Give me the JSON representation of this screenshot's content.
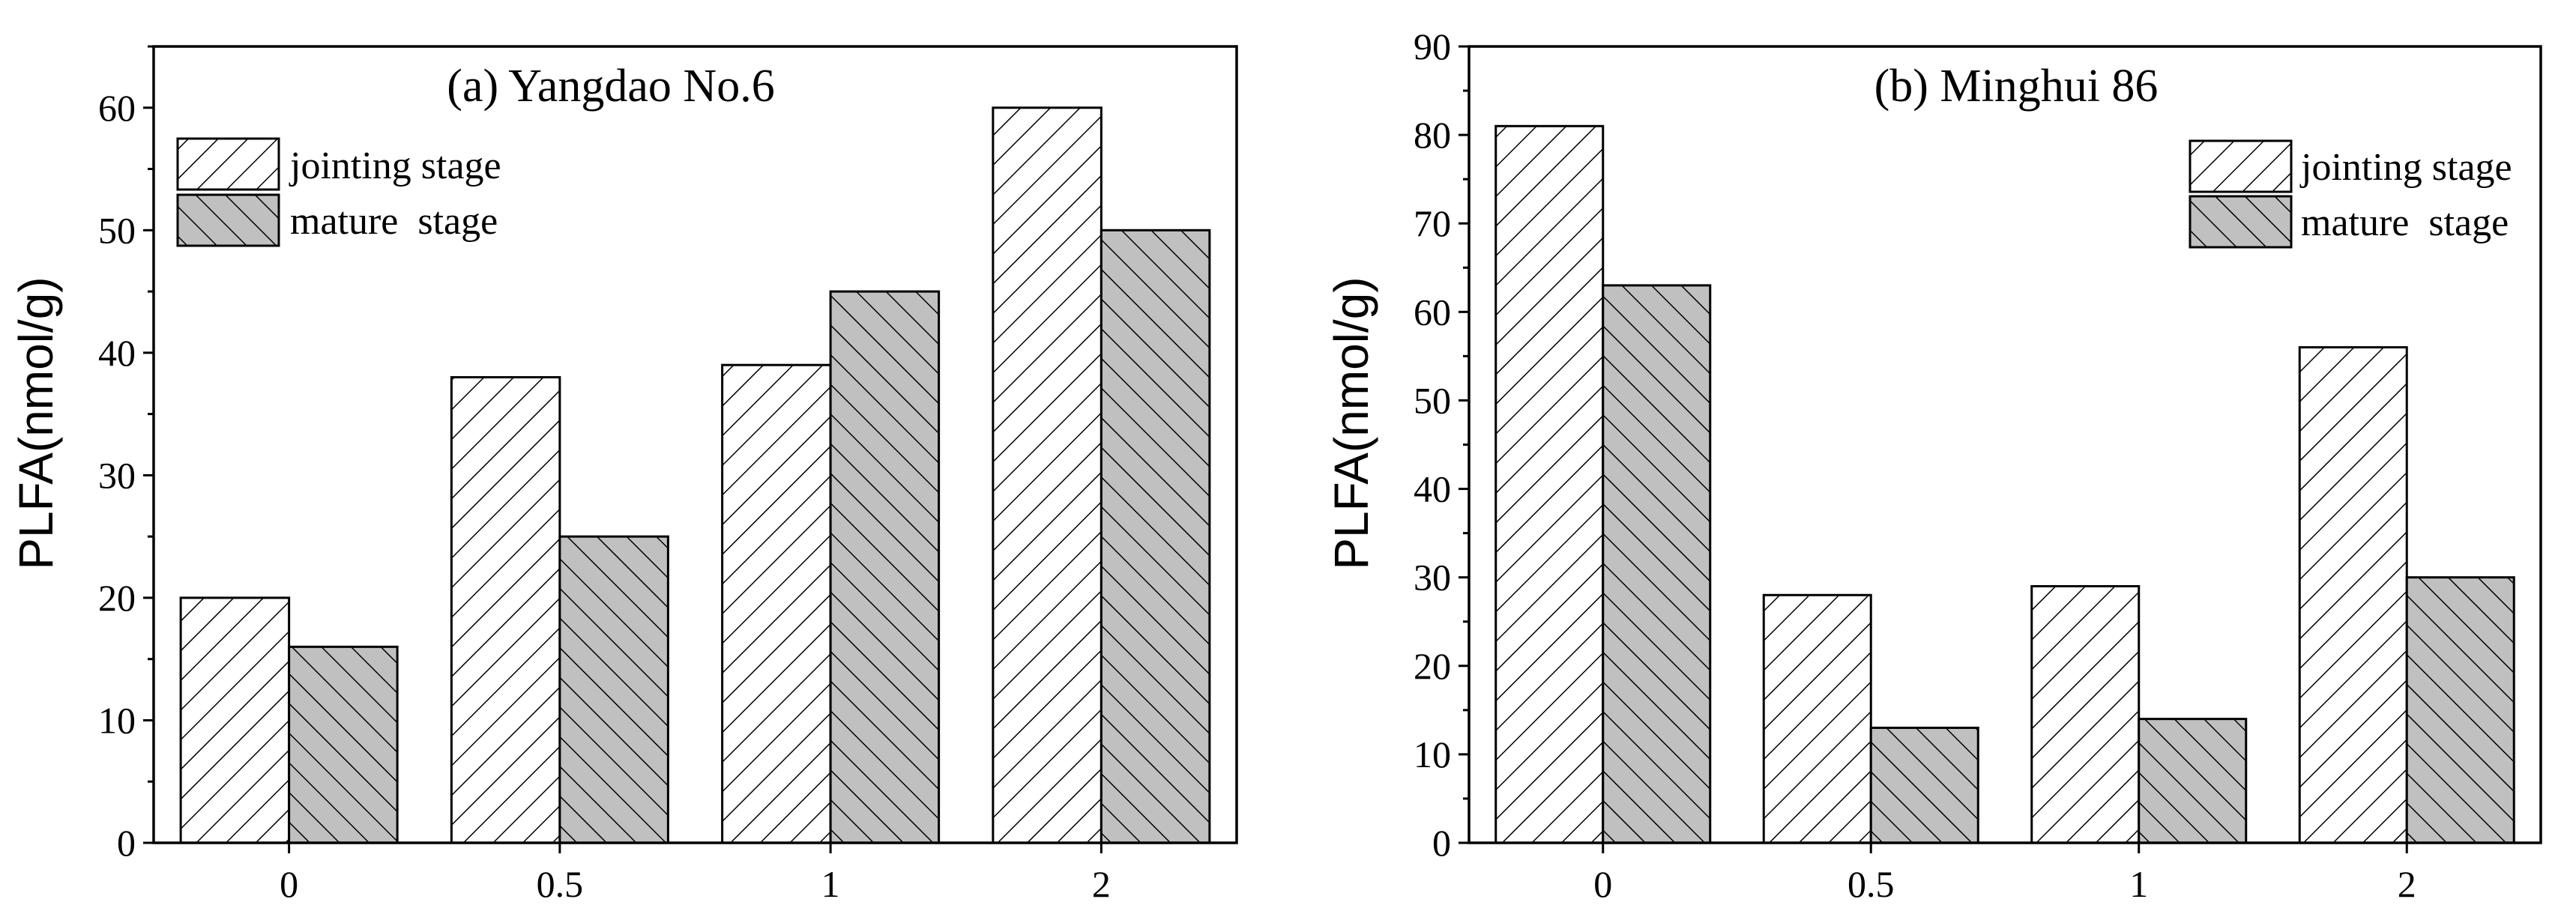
{
  "chart_data": [
    {
      "type": "bar",
      "title": "(a) Yangdao No.6",
      "xlabel": "",
      "ylabel": "PLFA(nmol/g)",
      "categories": [
        "0",
        "0.5",
        "1",
        "2"
      ],
      "ylim": [
        0,
        65
      ],
      "yticks": [
        0,
        10,
        20,
        30,
        40,
        50,
        60
      ],
      "legend_position": "top-left",
      "grid": false,
      "series": [
        {
          "name": "jointing stage",
          "values": [
            20,
            38,
            39,
            60
          ],
          "fill": "#ffffff",
          "hatch": "forward-diagonal"
        },
        {
          "name": "mature  stage",
          "values": [
            16,
            25,
            45,
            50
          ],
          "fill": "#c0c0c0",
          "hatch": "back-diagonal"
        }
      ]
    },
    {
      "type": "bar",
      "title": "(b) Minghui 86",
      "xlabel": "",
      "ylabel": "PLFA(nmol/g)",
      "categories": [
        "0",
        "0.5",
        "1",
        "2"
      ],
      "ylim": [
        0,
        90
      ],
      "yticks": [
        0,
        10,
        20,
        30,
        40,
        50,
        60,
        70,
        80,
        90
      ],
      "legend_position": "top-right",
      "grid": false,
      "series": [
        {
          "name": "jointing stage",
          "values": [
            81,
            28,
            29,
            56
          ],
          "fill": "#ffffff",
          "hatch": "forward-diagonal"
        },
        {
          "name": "mature  stage",
          "values": [
            63,
            13,
            14,
            30
          ],
          "fill": "#c0c0c0",
          "hatch": "back-diagonal"
        }
      ]
    }
  ]
}
